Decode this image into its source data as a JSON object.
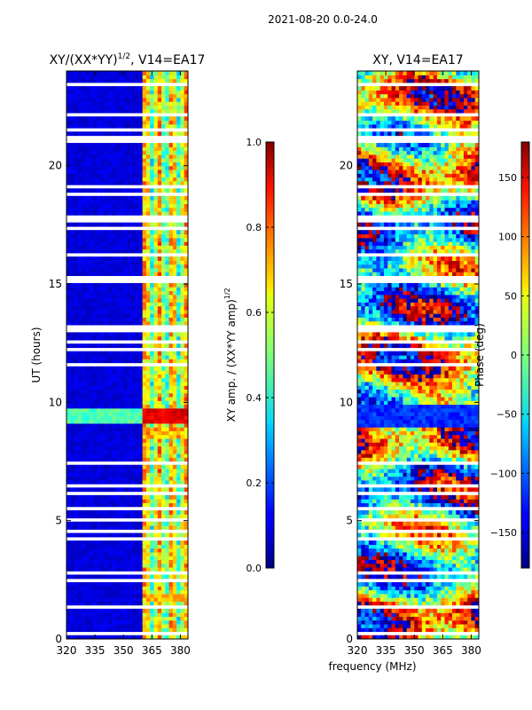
{
  "suptitle": "2021-08-20 0.0-24.0",
  "shared_xlabel": "frequency (MHz)",
  "chart_data": [
    {
      "type": "heatmap",
      "title": "XY/(XX*YY)",
      "title_exponent": "1/2",
      "title_suffix": ", V14=EA17",
      "xlabel": "",
      "ylabel": "UT (hours)",
      "xlim": [
        320,
        384
      ],
      "ylim": [
        0,
        24
      ],
      "xticks": [
        320,
        335,
        350,
        365,
        380
      ],
      "yticks": [
        0,
        5,
        10,
        15,
        20
      ],
      "colorscale": "jet",
      "colorbar": {
        "label": "XY amp. / (XX*YY amp)",
        "label_exponent": "1/2",
        "range": [
          0.0,
          1.0
        ],
        "ticks": [
          "0.0",
          "0.2",
          "0.4",
          "0.6",
          "0.8",
          "1.0"
        ]
      }
    },
    {
      "type": "heatmap",
      "title": "XY, V14=EA17",
      "xlabel": "frequency (MHz)",
      "ylabel": "",
      "xlim": [
        320,
        384
      ],
      "ylim": [
        0,
        24
      ],
      "xticks": [
        320,
        335,
        350,
        365,
        380
      ],
      "yticks": [
        0,
        5,
        10,
        15,
        20
      ],
      "colorscale": "jet",
      "colorbar": {
        "label": "Phase (deg)",
        "range": [
          -180,
          180
        ],
        "ticks": [
          -150,
          -100,
          -50,
          0,
          50,
          100,
          150
        ]
      }
    }
  ]
}
